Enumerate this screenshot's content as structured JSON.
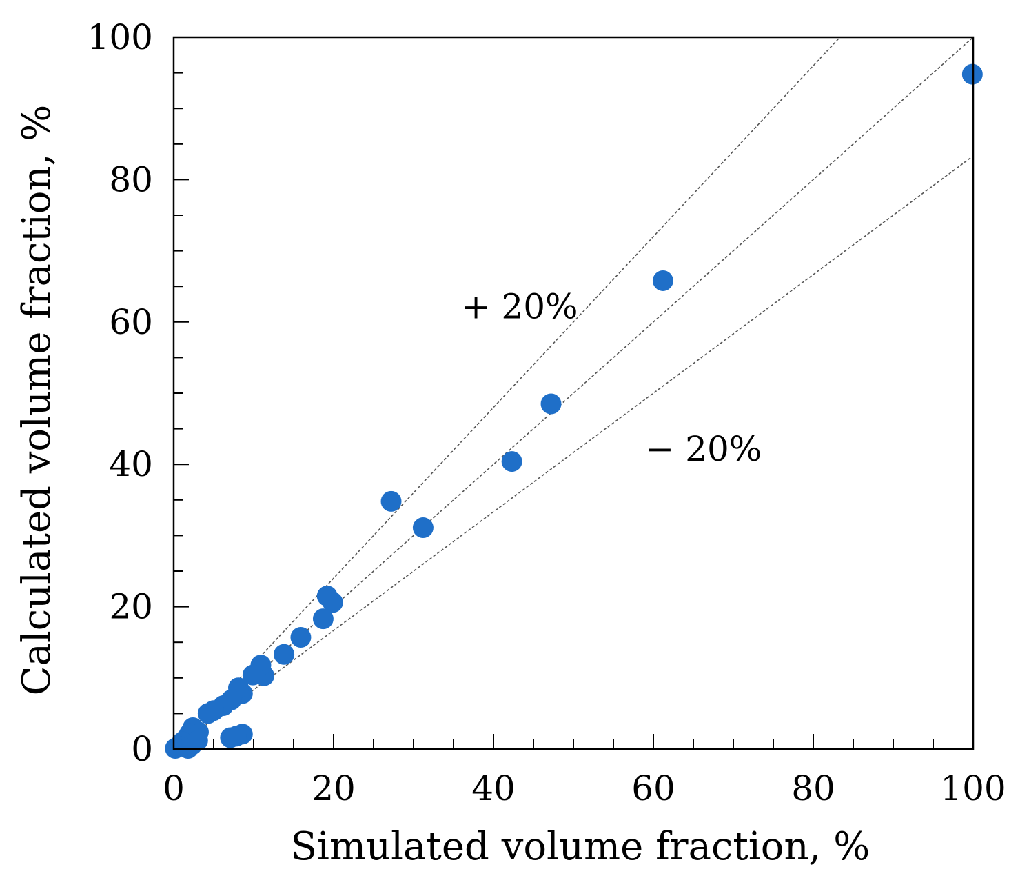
{
  "chart_data": {
    "type": "scatter",
    "title": "",
    "xlabel": "Simulated volume fraction, %",
    "ylabel": "Calculated volume fraction, %",
    "xlim": [
      0,
      100
    ],
    "ylim": [
      0,
      100
    ],
    "xticks": [
      "0",
      "20",
      "40",
      "60",
      "80",
      "100"
    ],
    "yticks": [
      "0",
      "20",
      "40",
      "60",
      "80",
      "100"
    ],
    "grid": false,
    "reference_lines": [
      {
        "name": "+20%",
        "slope": 1.2,
        "label": "+ 20%",
        "label_at": [
          36,
          60.5
        ]
      },
      {
        "name": "1:1",
        "slope": 1.0,
        "label": ""
      },
      {
        "name": "-20%",
        "slope": 0.8333,
        "label": "− 20%",
        "label_at": [
          59,
          40.5
        ]
      }
    ],
    "series": [
      {
        "name": "data",
        "color": "#1f6fc8",
        "points": [
          {
            "x": 99.9,
            "y": 94.8
          },
          {
            "x": 61.2,
            "y": 65.8
          },
          {
            "x": 47.2,
            "y": 48.5
          },
          {
            "x": 42.3,
            "y": 40.4
          },
          {
            "x": 31.2,
            "y": 31.1
          },
          {
            "x": 27.2,
            "y": 34.8
          },
          {
            "x": 19.9,
            "y": 20.6
          },
          {
            "x": 19.2,
            "y": 21.5
          },
          {
            "x": 18.7,
            "y": 18.3
          },
          {
            "x": 15.9,
            "y": 15.7
          },
          {
            "x": 13.8,
            "y": 13.3
          },
          {
            "x": 11.3,
            "y": 10.3
          },
          {
            "x": 10.9,
            "y": 11.8
          },
          {
            "x": 9.9,
            "y": 10.4
          },
          {
            "x": 8.6,
            "y": 7.8
          },
          {
            "x": 8.1,
            "y": 8.6
          },
          {
            "x": 7.2,
            "y": 6.9
          },
          {
            "x": 6.2,
            "y": 6.1
          },
          {
            "x": 5.0,
            "y": 5.4
          },
          {
            "x": 4.3,
            "y": 5.0
          },
          {
            "x": 8.6,
            "y": 2.1
          },
          {
            "x": 7.8,
            "y": 1.8
          },
          {
            "x": 7.1,
            "y": 1.6
          },
          {
            "x": 3.1,
            "y": 2.4
          },
          {
            "x": 2.4,
            "y": 3.0
          },
          {
            "x": 2.0,
            "y": 2.2
          },
          {
            "x": 1.6,
            "y": 1.5
          },
          {
            "x": 1.1,
            "y": 1.0
          },
          {
            "x": 0.6,
            "y": 0.4
          },
          {
            "x": 0.2,
            "y": 0.1
          },
          {
            "x": 1.8,
            "y": 0.1
          },
          {
            "x": 2.3,
            "y": 0.6
          },
          {
            "x": 3.0,
            "y": 1.2
          }
        ]
      }
    ]
  }
}
